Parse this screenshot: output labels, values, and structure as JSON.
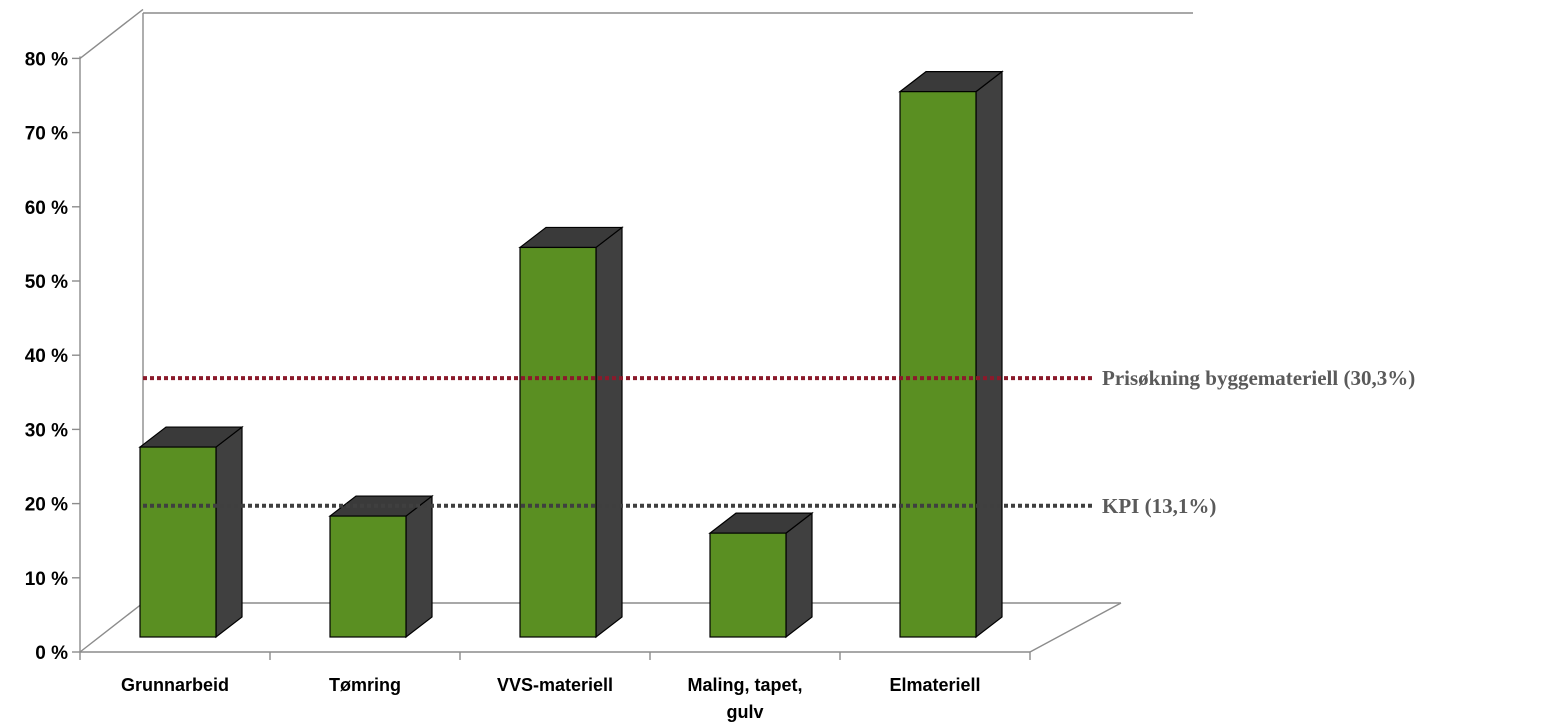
{
  "chart_data": {
    "type": "bar",
    "categories": [
      [
        "Grunnarbeid"
      ],
      [
        "Tømring"
      ],
      [
        "VVS-materiell"
      ],
      [
        "Maling, tapet,",
        "gulv"
      ],
      [
        "Elmateriell"
      ]
    ],
    "values": [
      25.6,
      16.3,
      52.5,
      14.0,
      73.5
    ],
    "ylim": [
      0,
      80
    ],
    "yticks": [
      "0 %",
      "10 %",
      "20 %",
      "30 %",
      "40 %",
      "50 %",
      "60 %",
      "70 %",
      "80 %"
    ],
    "three_d": true,
    "grid": false,
    "colors": {
      "bar_front": "#5a8f22",
      "bar_side": "#404040",
      "bar_top": "#3a3a3a",
      "outline": "#000000",
      "wall": "#8c8c8c"
    },
    "reference_lines": [
      {
        "label": "Prisøkning byggemateriell (30,3%)",
        "value": 30.3,
        "color": "#8b1a2b",
        "label_color": "#5a5a5a",
        "style": "dotted"
      },
      {
        "label": "KPI (13,1%)",
        "value": 13.1,
        "color": "#3f3f3f",
        "label_color": "#5a5a5a",
        "style": "dotted"
      }
    ]
  }
}
